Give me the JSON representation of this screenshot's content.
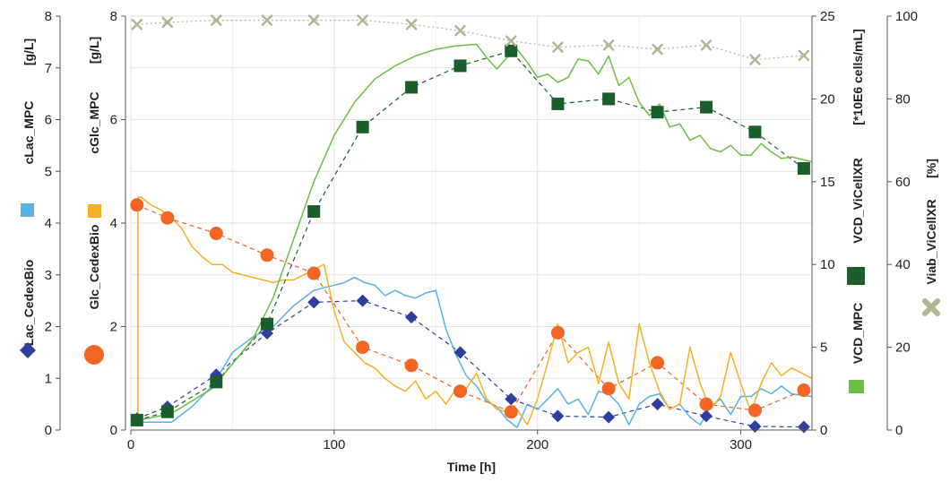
{
  "chart_data": {
    "type": "line",
    "title": "",
    "xlabel": "Time [h]",
    "xlim": [
      0,
      335
    ],
    "x_ticks": [
      0,
      100,
      200,
      300
    ],
    "grid": true,
    "legend": "none; each series name printed as a rotated y-axis title next to its marker swatch",
    "axes": {
      "lac": {
        "title": "Lac_CedexBio",
        "title2": "cLac_MPC",
        "unit": "[g/L]",
        "lim": [
          0,
          8
        ],
        "ticks": [
          0,
          1,
          2,
          3,
          4,
          5,
          6,
          7,
          8
        ]
      },
      "glc": {
        "title": "Glc_CedexBio",
        "title2": "cGlc_MPC",
        "unit": "[g/L]",
        "lim": [
          0,
          8
        ],
        "ticks": [
          0,
          2,
          4,
          6,
          8
        ]
      },
      "vcd": {
        "title": "VCD_MPC",
        "title2": "VCD_ViCellXR",
        "unit": "[*10E6 cells/mL]",
        "lim": [
          0,
          25
        ],
        "ticks": [
          0,
          5,
          10,
          15,
          20,
          25
        ]
      },
      "viab": {
        "title": "Viab_ViCellXR",
        "unit": "[%]",
        "lim": [
          0,
          100
        ],
        "ticks": [
          0,
          20,
          40,
          60,
          80,
          100
        ]
      }
    },
    "series": [
      {
        "name": "Lac_CedexBio",
        "axis": "lac",
        "marker": "diamond",
        "color": "#2e3f9e",
        "line": "dashed",
        "x": [
          3,
          18,
          42,
          67,
          90,
          114,
          138,
          162,
          187,
          210,
          235,
          259,
          283,
          307,
          331
        ],
        "y": [
          0.22,
          0.45,
          1.07,
          1.87,
          2.47,
          2.5,
          2.18,
          1.5,
          0.6,
          0.27,
          0.25,
          0.5,
          0.27,
          0.07,
          0.06
        ]
      },
      {
        "name": "cLac_MPC",
        "axis": "lac",
        "marker": "none",
        "color": "#55b3e6",
        "line": "solid",
        "x": [
          0,
          20,
          30,
          40,
          50,
          60,
          70,
          80,
          90,
          100,
          105,
          110,
          115,
          120,
          125,
          130,
          135,
          140,
          145,
          150,
          155,
          160,
          165,
          170,
          175,
          180,
          185,
          190,
          195,
          200,
          205,
          210,
          215,
          220,
          225,
          230,
          235,
          240,
          245,
          250,
          255,
          260,
          265,
          270,
          275,
          280,
          285,
          290,
          295,
          300,
          305,
          310,
          315,
          320,
          325,
          335
        ],
        "y": [
          0.15,
          0.15,
          0.45,
          0.85,
          1.5,
          1.8,
          2.0,
          2.4,
          2.7,
          2.8,
          2.85,
          2.95,
          2.85,
          2.8,
          2.6,
          2.7,
          2.6,
          2.55,
          2.65,
          2.7,
          1.95,
          1.45,
          1.05,
          0.85,
          0.55,
          0.45,
          0.2,
          0.05,
          0.5,
          0.4,
          0.6,
          0.8,
          0.5,
          0.6,
          0.3,
          0.75,
          0.7,
          0.5,
          0.1,
          0.5,
          0.65,
          0.7,
          0.4,
          0.5,
          0.25,
          0.1,
          0.45,
          0.6,
          0.3,
          0.65,
          0.65,
          0.8,
          0.7,
          0.85,
          0.7,
          0.65
        ]
      },
      {
        "name": "Glc_CedexBio",
        "axis": "glc",
        "marker": "circle",
        "color": "#f26522",
        "line": "dashed",
        "x": [
          3,
          18,
          42,
          67,
          90,
          114,
          138,
          162,
          187,
          210,
          235,
          259,
          283,
          307,
          331
        ],
        "y": [
          4.35,
          4.1,
          3.8,
          3.38,
          3.03,
          1.6,
          1.25,
          0.75,
          0.35,
          1.88,
          0.8,
          1.3,
          0.5,
          0.38,
          0.77
        ]
      },
      {
        "name": "cGlc_MPC",
        "axis": "glc",
        "marker": "none",
        "color": "#f5b024",
        "line": "solid",
        "x": [
          3.5,
          3.5,
          5,
          10,
          15,
          20,
          25,
          30,
          35,
          40,
          45,
          50,
          55,
          60,
          65,
          70,
          75,
          80,
          85,
          90,
          95,
          100,
          105,
          110,
          115,
          120,
          125,
          130,
          135,
          140,
          145,
          150,
          155,
          160,
          165,
          170,
          175,
          180,
          185,
          190,
          195,
          200,
          205,
          210,
          215,
          220,
          225,
          230,
          235,
          240,
          245,
          250,
          255,
          260,
          265,
          270,
          275,
          280,
          285,
          290,
          295,
          300,
          305,
          310,
          315,
          320,
          325,
          335
        ],
        "y": [
          0.15,
          4.5,
          4.5,
          4.35,
          4.25,
          4.1,
          3.9,
          3.55,
          3.35,
          3.2,
          3.2,
          3.05,
          3.0,
          2.95,
          2.9,
          2.85,
          2.9,
          2.9,
          3.0,
          3.1,
          3.2,
          2.3,
          1.7,
          1.5,
          1.3,
          1.2,
          1.0,
          0.85,
          0.75,
          0.95,
          0.6,
          0.75,
          0.5,
          0.8,
          0.8,
          1.1,
          0.6,
          0.4,
          0.35,
          0.4,
          0.1,
          0.6,
          1.3,
          2.05,
          1.3,
          1.5,
          1.6,
          0.9,
          1.7,
          0.9,
          0.6,
          2.05,
          1.3,
          0.75,
          0.4,
          0.5,
          1.6,
          0.9,
          0.4,
          0.65,
          1.5,
          0.9,
          0.35,
          0.9,
          1.3,
          1.05,
          1.2,
          1.0
        ]
      },
      {
        "name": "VCD_ViCellXR",
        "axis": "vcd",
        "marker": "square",
        "color": "#1a5e2c",
        "line": "dashed",
        "x": [
          3,
          18,
          42,
          67,
          90,
          114,
          138,
          162,
          187,
          210,
          235,
          259,
          283,
          307,
          331
        ],
        "y": [
          0.6,
          1.1,
          2.9,
          6.4,
          13.2,
          18.3,
          20.7,
          22.0,
          22.9,
          19.7,
          20.0,
          19.2,
          19.5,
          18.0,
          15.8
        ]
      },
      {
        "name": "VCD_MPC",
        "axis": "vcd",
        "marker": "none",
        "color": "#6cbf43",
        "line": "solid",
        "x": [
          0,
          20,
          40,
          60,
          70,
          80,
          90,
          100,
          110,
          120,
          130,
          140,
          150,
          160,
          170,
          175,
          180,
          185,
          190,
          195,
          200,
          205,
          210,
          215,
          220,
          225,
          230,
          235,
          240,
          245,
          250,
          255,
          260,
          265,
          270,
          275,
          280,
          285,
          290,
          295,
          300,
          305,
          310,
          315,
          320,
          325,
          335
        ],
        "y": [
          0.5,
          1.0,
          2.5,
          5.5,
          8.0,
          11.5,
          15.0,
          17.8,
          19.8,
          21.2,
          22.0,
          22.6,
          23.0,
          23.2,
          23.3,
          22.5,
          21.8,
          22.5,
          23.0,
          22.2,
          21.3,
          21.5,
          21.0,
          21.3,
          22.4,
          22.3,
          21.5,
          22.6,
          20.8,
          21.3,
          19.8,
          19.0,
          19.7,
          18.3,
          18.5,
          17.5,
          17.8,
          17.0,
          16.8,
          17.2,
          16.6,
          16.6,
          17.3,
          16.8,
          16.4,
          16.5,
          16.2
        ]
      },
      {
        "name": "Viab_ViCellXR",
        "axis": "viab",
        "marker": "x",
        "color": "#b4b594",
        "line": "dotted",
        "x": [
          3,
          18,
          42,
          67,
          90,
          114,
          138,
          162,
          187,
          210,
          235,
          259,
          283,
          307,
          331
        ],
        "y": [
          98,
          98.5,
          99,
          99,
          99,
          99,
          98,
          96.5,
          94,
          92.5,
          93,
          92,
          93,
          89.5,
          90.5
        ]
      }
    ]
  }
}
